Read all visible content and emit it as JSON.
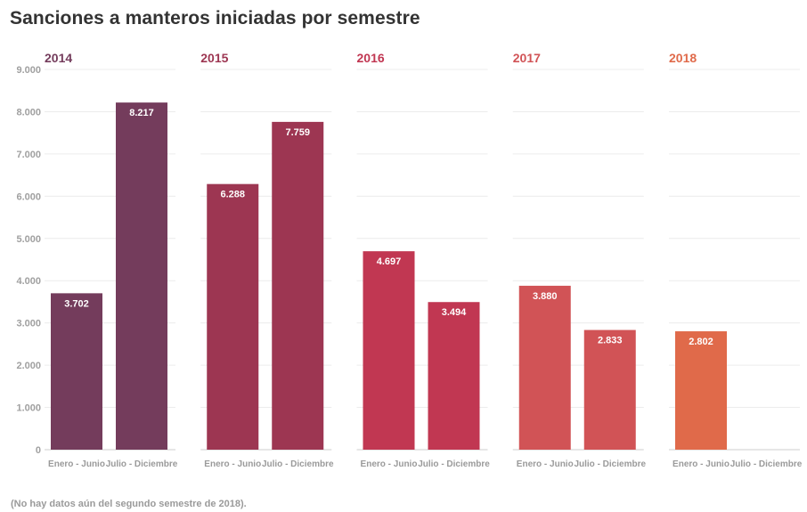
{
  "title": "Sanciones a manteros iniciadas por semestre",
  "footnote": "(No hay datos aún del segundo semestre de 2018).",
  "chart_data": {
    "type": "bar",
    "title": "Sanciones a manteros iniciadas por semestre",
    "ylim": [
      0,
      9000
    ],
    "yticks": [
      0,
      1000,
      2000,
      3000,
      4000,
      5000,
      6000,
      7000,
      8000,
      9000
    ],
    "ytick_labels": [
      "0",
      "1.000",
      "2.000",
      "3.000",
      "4.000",
      "5.000",
      "6.000",
      "7.000",
      "8.000",
      "9.000"
    ],
    "grid": true,
    "categories": [
      "Enero - Junio",
      "Julio - Diciembre"
    ],
    "panels": [
      {
        "year": "2014",
        "color": "#743c5c",
        "values": [
          3702,
          8217
        ],
        "labels": [
          "3.702",
          "8.217"
        ]
      },
      {
        "year": "2015",
        "color": "#9d3652",
        "values": [
          6288,
          7759
        ],
        "labels": [
          "6.288",
          "7.759"
        ]
      },
      {
        "year": "2016",
        "color": "#c13752",
        "values": [
          4697,
          3494
        ],
        "labels": [
          "4.697",
          "3.494"
        ]
      },
      {
        "year": "2017",
        "color": "#d15356",
        "values": [
          3880,
          2833
        ],
        "labels": [
          "3.880",
          "2.833"
        ]
      },
      {
        "year": "2018",
        "color": "#e06a4a",
        "values": [
          2802,
          null
        ],
        "labels": [
          "2.802",
          ""
        ]
      }
    ]
  }
}
